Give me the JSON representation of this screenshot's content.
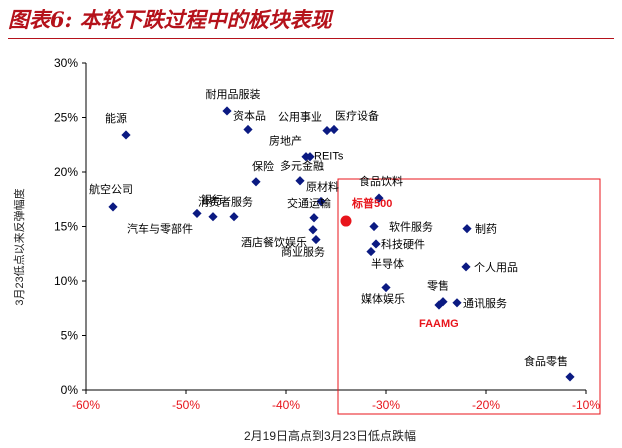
{
  "figure": {
    "title": "图表6: 本轮下跌过程中的板块表现"
  },
  "chart_data": {
    "type": "scatter",
    "xlabel": "2月19日高点到3月23日低点跌幅",
    "ylabel": "3月23低点以来反弹幅度",
    "xlim": [
      -0.6,
      -0.1
    ],
    "ylim": [
      0,
      0.3
    ],
    "x_ticks": [
      "-60%",
      "-50%",
      "-40%",
      "-30%",
      "-20%",
      "-10%"
    ],
    "y_ticks": [
      "0%",
      "5%",
      "10%",
      "15%",
      "20%",
      "25%",
      "30%"
    ],
    "grid": false,
    "point_color": "#0b1a82",
    "highlight_color": "#e8141b",
    "points": [
      {
        "name": "能源",
        "x": -0.56,
        "y": 0.234
      },
      {
        "name": "航空公司",
        "x": -0.573,
        "y": 0.168
      },
      {
        "name": "耐用品服装",
        "x": -0.459,
        "y": 0.256
      },
      {
        "name": "资本品",
        "x": -0.438,
        "y": 0.239
      },
      {
        "name": "公用事业",
        "x": -0.359,
        "y": 0.238
      },
      {
        "name": "医疗设备",
        "x": -0.352,
        "y": 0.239
      },
      {
        "name": "房地产",
        "x": -0.38,
        "y": 0.214
      },
      {
        "name": "REITs",
        "x": -0.376,
        "y": 0.214
      },
      {
        "name": "多元金融",
        "x": -0.386,
        "y": 0.192
      },
      {
        "name": "保险",
        "x": -0.43,
        "y": 0.191
      },
      {
        "name": "银行",
        "x": -0.489,
        "y": 0.162
      },
      {
        "name": "汽车与零部件",
        "x": -0.473,
        "y": 0.159
      },
      {
        "name": "消费者服务",
        "x": -0.452,
        "y": 0.159
      },
      {
        "name": "原材料",
        "x": -0.365,
        "y": 0.173
      },
      {
        "name": "交通运输",
        "x": -0.372,
        "y": 0.158
      },
      {
        "name": "酒店餐饮娱乐",
        "x": -0.373,
        "y": 0.147
      },
      {
        "name": "商业服务",
        "x": -0.37,
        "y": 0.138
      },
      {
        "name": "食品饮料",
        "x": -0.307,
        "y": 0.176
      },
      {
        "name": "软件服务",
        "x": -0.312,
        "y": 0.15
      },
      {
        "name": "科技硬件",
        "x": -0.31,
        "y": 0.134
      },
      {
        "name": "半导体",
        "x": -0.315,
        "y": 0.127
      },
      {
        "name": "制药",
        "x": -0.219,
        "y": 0.148
      },
      {
        "name": "个人用品",
        "x": -0.22,
        "y": 0.113
      },
      {
        "name": "媒体娱乐",
        "x": -0.3,
        "y": 0.094
      },
      {
        "name": "零售",
        "x": -0.243,
        "y": 0.081
      },
      {
        "name": "通讯服务",
        "x": -0.229,
        "y": 0.08
      },
      {
        "name": "FAAMG",
        "x": -0.247,
        "y": 0.078
      },
      {
        "name": "食品零售",
        "x": -0.116,
        "y": 0.012
      },
      {
        "name": "标普500",
        "x": -0.34,
        "y": 0.155
      }
    ]
  }
}
